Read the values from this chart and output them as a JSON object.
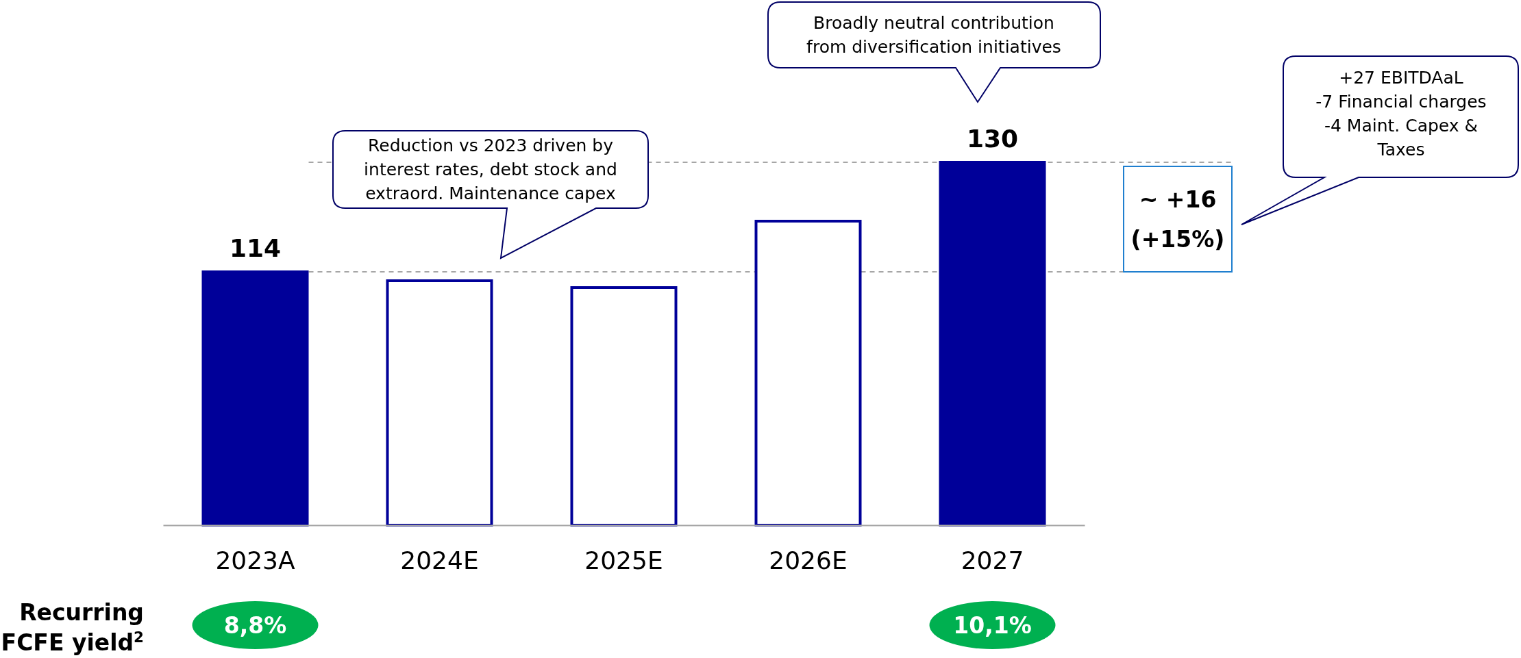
{
  "chart_data": {
    "type": "bar",
    "categories": [
      "2023A",
      "2024E",
      "2025E",
      "2026E",
      "2027"
    ],
    "values": [
      114,
      112.7,
      111.7,
      121.4,
      130
    ],
    "value_labels": [
      "114",
      null,
      null,
      null,
      "130"
    ],
    "color": "#000099",
    "colors": [
      "#000099",
      "#ffffff",
      "#ffffff",
      "#ffffff",
      "#000099"
    ],
    "ylim": [
      77,
      130
    ],
    "tick_labels": "x",
    "ref_lines": [
      {
        "axis": "y",
        "value": 114,
        "color": "#a6a6a6",
        "line_style": "dashed"
      },
      {
        "axis": "y",
        "value": 130,
        "color": "#a6a6a6",
        "line_style": "dashed"
      }
    ],
    "annotations": [
      "Reduction vs 2023 driven by\ninterest rates, debt stock and\nextraord. Maintenance capex",
      "Broadly neutral contribution\nfrom diversification initiatives",
      "+27 EBITDAaL\n-7 Financial charges\n-4 Maint. Capex &\nTaxes",
      "~ +16\n(+15%)",
      "Recurring\nFCFE yield$^{2}$",
      "8,8%",
      "10,1%"
    ]
  }
}
